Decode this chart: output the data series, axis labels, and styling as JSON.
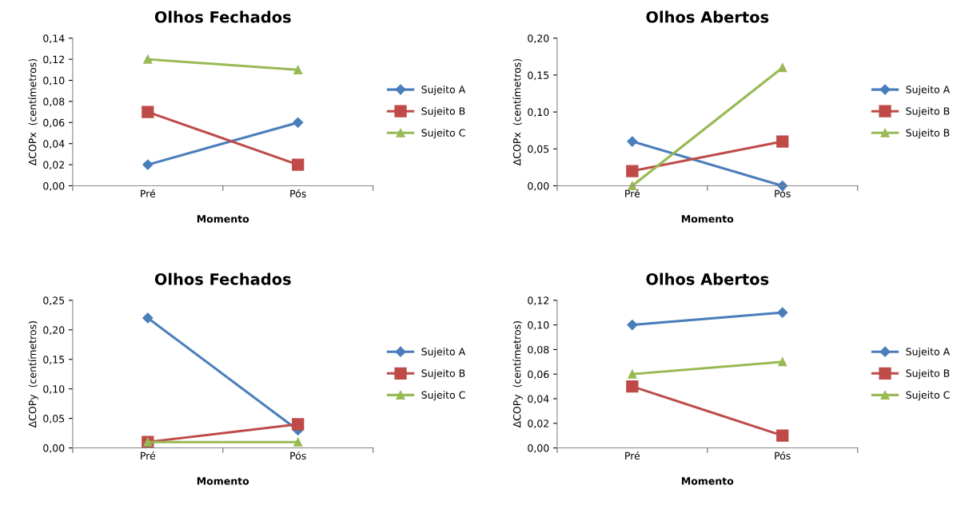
{
  "chart_data": [
    {
      "type": "line",
      "title": "Olhos Fechados",
      "xlabel": "Momento",
      "ylabel": "ΔCOPx  (centímetros)",
      "categories": [
        "Pré",
        "Pós"
      ],
      "ylim": [
        0,
        0.14
      ],
      "yticks": [
        {
          "value": 0,
          "label": "0,00"
        },
        {
          "value": 0.02,
          "label": "0,02"
        },
        {
          "value": 0.04,
          "label": "0,04"
        },
        {
          "value": 0.06,
          "label": "0,06"
        },
        {
          "value": 0.08,
          "label": "0,08"
        },
        {
          "value": 0.1,
          "label": "0,10"
        },
        {
          "value": 0.12,
          "label": "0,12"
        },
        {
          "value": 0.14,
          "label": "0,14"
        }
      ],
      "grid": false,
      "legend": "right",
      "series": [
        {
          "name": "Sujeito A",
          "color": "#4a7ebb",
          "marker": "diamond",
          "values": [
            0.02,
            0.06
          ]
        },
        {
          "name": "Sujeito B",
          "color": "#be4b48",
          "marker": "square",
          "values": [
            0.07,
            0.02
          ]
        },
        {
          "name": "Sujeito C",
          "color": "#98b954",
          "marker": "triangle",
          "values": [
            0.12,
            0.11
          ]
        }
      ]
    },
    {
      "type": "line",
      "title": "Olhos Abertos",
      "xlabel": "Momento",
      "ylabel": "ΔCOPx  (centímetros)",
      "categories": [
        "Pré",
        "Pós"
      ],
      "ylim": [
        0,
        0.2
      ],
      "yticks": [
        {
          "value": 0,
          "label": "0,00"
        },
        {
          "value": 0.05,
          "label": "0,05"
        },
        {
          "value": 0.1,
          "label": "0,10"
        },
        {
          "value": 0.15,
          "label": "0,15"
        },
        {
          "value": 0.2,
          "label": "0,20"
        }
      ],
      "grid": false,
      "legend": "right",
      "series": [
        {
          "name": "Sujeito A",
          "color": "#4a7ebb",
          "marker": "diamond",
          "values": [
            0.06,
            0.0
          ]
        },
        {
          "name": "Sujeito B",
          "color": "#be4b48",
          "marker": "square",
          "values": [
            0.02,
            0.06
          ]
        },
        {
          "name": "Sujeito B",
          "color": "#98b954",
          "marker": "triangle",
          "values": [
            0.0,
            0.16
          ]
        }
      ]
    },
    {
      "type": "line",
      "title": "Olhos Fechados",
      "xlabel": "Momento",
      "ylabel": "ΔCOPy  (centímetros)",
      "categories": [
        "Pré",
        "Pós"
      ],
      "ylim": [
        0,
        0.25
      ],
      "yticks": [
        {
          "value": 0,
          "label": "0,00"
        },
        {
          "value": 0.05,
          "label": "0,05"
        },
        {
          "value": 0.1,
          "label": "0,10"
        },
        {
          "value": 0.15,
          "label": "0,15"
        },
        {
          "value": 0.2,
          "label": "0,20"
        },
        {
          "value": 0.25,
          "label": "0,25"
        }
      ],
      "grid": false,
      "legend": "right",
      "series": [
        {
          "name": "Sujeito A",
          "color": "#4a7ebb",
          "marker": "diamond",
          "values": [
            0.22,
            0.03
          ]
        },
        {
          "name": "Sujeito B",
          "color": "#be4b48",
          "marker": "square",
          "values": [
            0.01,
            0.04
          ]
        },
        {
          "name": "Sujeito C",
          "color": "#98b954",
          "marker": "triangle",
          "values": [
            0.01,
            0.01
          ]
        }
      ]
    },
    {
      "type": "line",
      "title": "Olhos Abertos",
      "xlabel": "Momento",
      "ylabel": "ΔCOPy  (centímetros)",
      "categories": [
        "Pré",
        "Pós"
      ],
      "ylim": [
        0,
        0.12
      ],
      "yticks": [
        {
          "value": 0,
          "label": "0,00"
        },
        {
          "value": 0.02,
          "label": "0,02"
        },
        {
          "value": 0.04,
          "label": "0,04"
        },
        {
          "value": 0.06,
          "label": "0,06"
        },
        {
          "value": 0.08,
          "label": "0,08"
        },
        {
          "value": 0.1,
          "label": "0,10"
        },
        {
          "value": 0.12,
          "label": "0,12"
        }
      ],
      "grid": false,
      "legend": "right",
      "series": [
        {
          "name": "Sujeito A",
          "color": "#4a7ebb",
          "marker": "diamond",
          "values": [
            0.1,
            0.11
          ]
        },
        {
          "name": "Sujeito B",
          "color": "#be4b48",
          "marker": "square",
          "values": [
            0.05,
            0.01
          ]
        },
        {
          "name": "Sujeito C",
          "color": "#98b954",
          "marker": "triangle",
          "values": [
            0.06,
            0.07
          ]
        }
      ]
    }
  ]
}
